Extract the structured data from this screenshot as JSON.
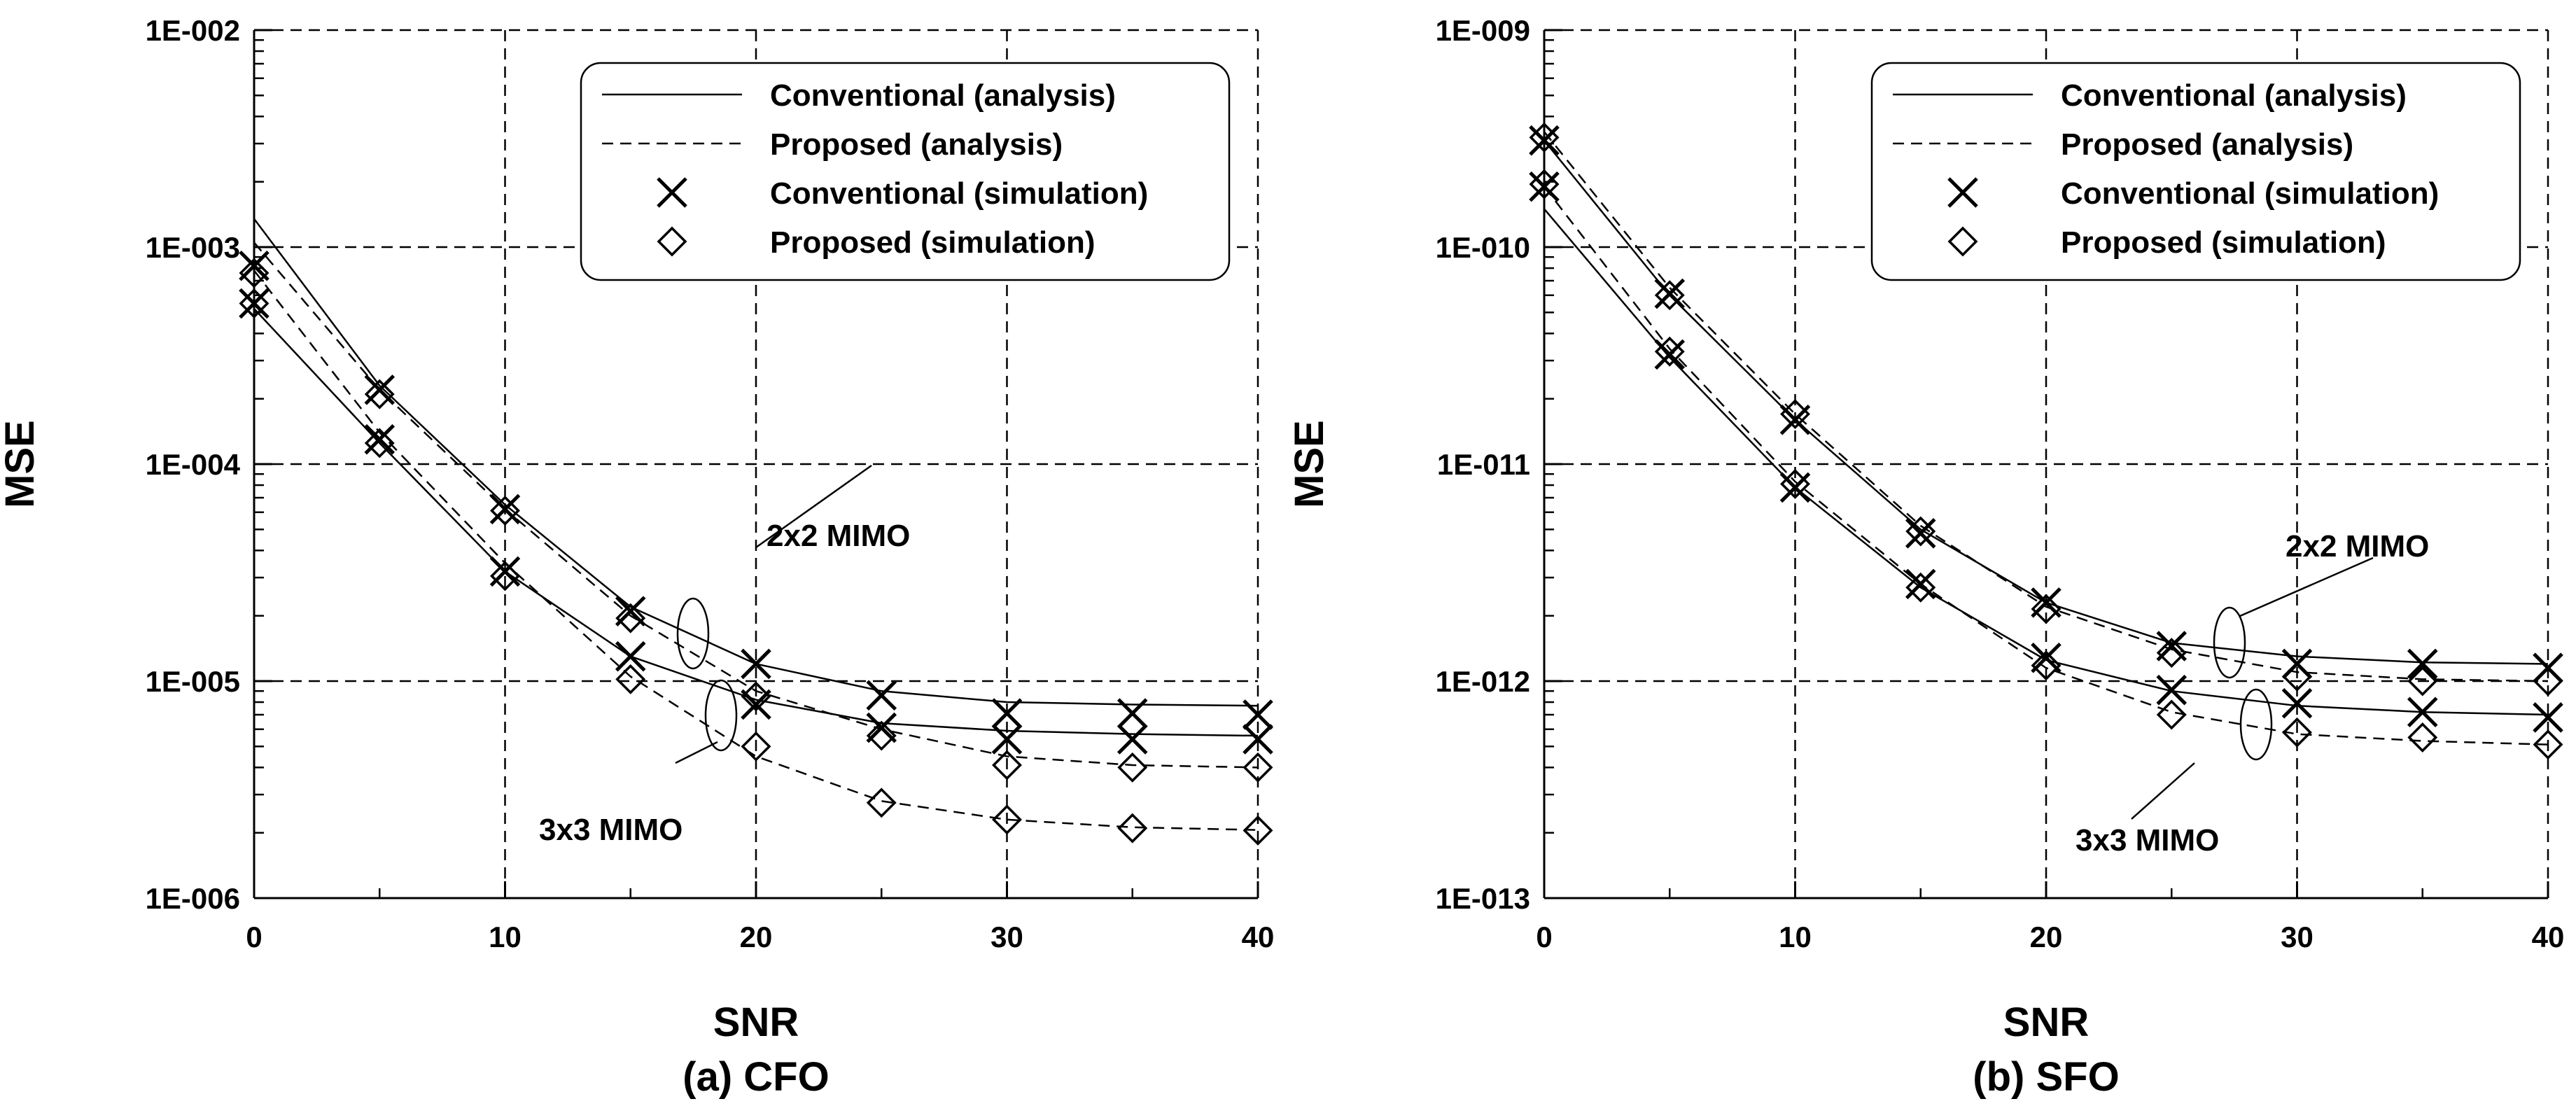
{
  "chart_data": [
    {
      "type": "line",
      "panel": "a",
      "caption": "(a) CFO",
      "xlabel": "SNR",
      "ylabel": "MSE",
      "xlim": [
        0,
        40
      ],
      "ylim": [
        1e-06,
        0.01
      ],
      "yscale": "log",
      "grid": true,
      "x_ticks": [
        0,
        10,
        20,
        30,
        40
      ],
      "x_tick_labels": [
        "0",
        "10",
        "20",
        "30",
        "40"
      ],
      "y_ticks": [
        0.01,
        0.001,
        0.0001,
        1e-05,
        1e-06
      ],
      "y_tick_labels": [
        "1E-002",
        "1E-003",
        "1E-004",
        "1E-005",
        "1E-006"
      ],
      "legend": {
        "location": "top-right",
        "entries": [
          "Conventional (analysis)",
          "Proposed (analysis)",
          "Conventional (simulation)",
          "Proposed (simulation)"
        ]
      },
      "annotations": [
        "2x2 MIMO",
        "3x3 MIMO"
      ],
      "x": [
        0,
        5,
        10,
        15,
        20,
        25,
        30,
        35,
        40
      ],
      "series": [
        {
          "name": "Conventional (analysis)",
          "mimo": "2x2",
          "style": "solid",
          "values": [
            0.00135,
            0.00023,
            6.5e-05,
            2.2e-05,
            1.2e-05,
            9e-06,
            8e-06,
            7.8e-06,
            7.7e-06
          ]
        },
        {
          "name": "Proposed (analysis)",
          "mimo": "2x2",
          "style": "dashed",
          "values": [
            0.00105,
            0.00022,
            6.2e-05,
            2e-05,
            9e-06,
            6e-06,
            4.5e-06,
            4.1e-06,
            4e-06
          ]
        },
        {
          "name": "Conventional (analysis)",
          "mimo": "3x3",
          "style": "solid",
          "values": [
            0.00052,
            0.000125,
            3.2e-05,
            1.3e-05,
            8.2e-06,
            6.4e-06,
            5.9e-06,
            5.7e-06,
            5.6e-06
          ]
        },
        {
          "name": "Proposed (analysis)",
          "mimo": "3x3",
          "style": "dashed",
          "values": [
            0.00078,
            0.00014,
            3.5e-05,
            1.05e-05,
            4.5e-06,
            2.8e-06,
            2.3e-06,
            2.12e-06,
            2.06e-06
          ]
        },
        {
          "name": "Conventional (simulation)",
          "mimo": "2x2",
          "marker": "x",
          "values": [
            0.00082,
            0.00022,
            6.2e-05,
            2.1e-05,
            1.2e-05,
            8.6e-06,
            7.1e-06,
            7.1e-06,
            7e-06
          ]
        },
        {
          "name": "Proposed (simulation)",
          "mimo": "2x2",
          "marker": "diamond",
          "values": [
            0.00076,
            0.00021,
            6.1e-05,
            1.95e-05,
            8.5e-06,
            5.6e-06,
            4.1e-06,
            4e-06,
            4e-06
          ]
        },
        {
          "name": "Conventional (simulation)",
          "mimo": "3x3",
          "marker": "x",
          "values": [
            0.00055,
            0.00013,
            3.2e-05,
            1.3e-05,
            7.8e-06,
            6.1e-06,
            5.4e-06,
            5.4e-06,
            5.4e-06
          ]
        },
        {
          "name": "Proposed (simulation)",
          "mimo": "3x3",
          "marker": "diamond",
          "values": [
            0.00055,
            0.000125,
            3.05e-05,
            1.02e-05,
            5e-06,
            2.75e-06,
            2.3e-06,
            2.1e-06,
            2.05e-06
          ]
        }
      ]
    },
    {
      "type": "line",
      "panel": "b",
      "caption": "(b) SFO",
      "xlabel": "SNR",
      "ylabel": "MSE",
      "xlim": [
        0,
        40
      ],
      "ylim": [
        1e-13,
        1e-09
      ],
      "yscale": "log",
      "grid": true,
      "x_ticks": [
        0,
        10,
        20,
        30,
        40
      ],
      "x_tick_labels": [
        "0",
        "10",
        "20",
        "30",
        "40"
      ],
      "y_ticks": [
        1e-09,
        1e-10,
        1e-11,
        1e-12,
        1e-13
      ],
      "y_tick_labels": [
        "1E-009",
        "1E-010",
        "1E-011",
        "1E-012",
        "1E-013"
      ],
      "legend": {
        "location": "top-right",
        "entries": [
          "Conventional (analysis)",
          "Proposed (analysis)",
          "Conventional (simulation)",
          "Proposed (simulation)"
        ]
      },
      "annotations": [
        "2x2 MIMO",
        "3x3 MIMO"
      ],
      "x": [
        0,
        5,
        10,
        15,
        20,
        25,
        30,
        35,
        40
      ],
      "series": [
        {
          "name": "Conventional (analysis)",
          "mimo": "2x2",
          "style": "solid",
          "values": [
            3.1e-10,
            6e-11,
            1.6e-11,
            5e-12,
            2.3e-12,
            1.5e-12,
            1.3e-12,
            1.22e-12,
            1.2e-12
          ]
        },
        {
          "name": "Proposed (analysis)",
          "mimo": "2x2",
          "style": "dashed",
          "values": [
            3.4e-10,
            6.5e-11,
            1.7e-11,
            5.2e-12,
            2.2e-12,
            1.4e-12,
            1.1e-12,
            1.02e-12,
            1e-12
          ]
        },
        {
          "name": "Conventional (analysis)",
          "mimo": "3x3",
          "style": "solid",
          "values": [
            1.5e-10,
            3.1e-11,
            7.8e-12,
            2.7e-12,
            1.25e-12,
            9e-13,
            7.7e-13,
            7.2e-13,
            7e-13
          ]
        },
        {
          "name": "Proposed (analysis)",
          "mimo": "3x3",
          "style": "dashed",
          "values": [
            1.9e-10,
            3.4e-11,
            8.3e-12,
            2.8e-12,
            1.15e-12,
            7.2e-13,
            5.7e-13,
            5.3e-13,
            5.1e-13
          ]
        },
        {
          "name": "Conventional (simulation)",
          "mimo": "2x2",
          "marker": "x",
          "values": [
            3.1e-10,
            6.1e-11,
            1.6e-11,
            4.8e-12,
            2.3e-12,
            1.45e-12,
            1.2e-12,
            1.2e-12,
            1.15e-12
          ]
        },
        {
          "name": "Proposed (simulation)",
          "mimo": "2x2",
          "marker": "diamond",
          "values": [
            3.2e-10,
            6e-11,
            1.7e-11,
            4.9e-12,
            2.15e-12,
            1.35e-12,
            1.05e-12,
            1e-12,
            1e-12
          ]
        },
        {
          "name": "Conventional (simulation)",
          "mimo": "3x3",
          "marker": "x",
          "values": [
            1.9e-10,
            3.2e-11,
            7.8e-12,
            2.8e-12,
            1.28e-12,
            9.1e-13,
            7.9e-13,
            7.2e-13,
            6.8e-13
          ]
        },
        {
          "name": "Proposed (simulation)",
          "mimo": "3x3",
          "marker": "diamond",
          "values": [
            1.95e-10,
            3.3e-11,
            8.1e-12,
            2.7e-12,
            1.18e-12,
            7e-13,
            5.8e-13,
            5.5e-13,
            5.1e-13
          ]
        }
      ]
    }
  ]
}
